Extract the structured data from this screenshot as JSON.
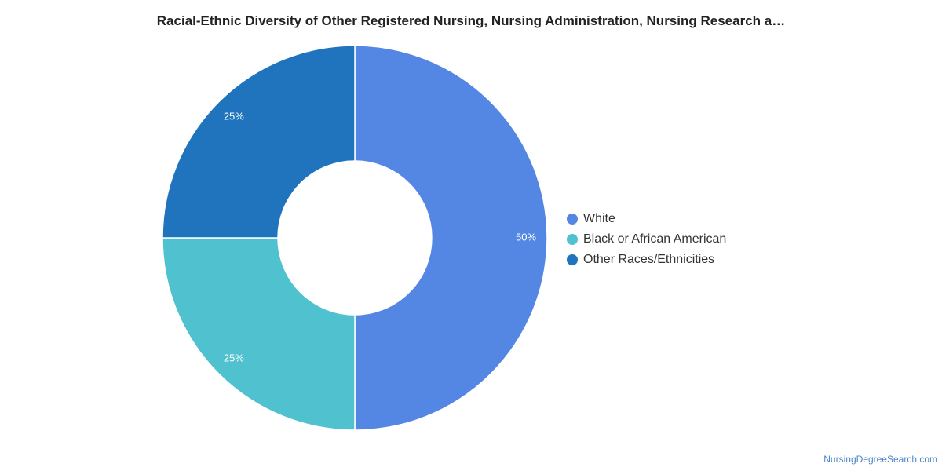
{
  "chart_data": {
    "type": "pie",
    "title": "Racial-Ethnic Diversity of Other Registered Nursing, Nursing Administration, Nursing Research a…",
    "categories": [
      "White",
      "Black or African American",
      "Other Races/Ethnicities"
    ],
    "values": [
      50,
      25,
      25
    ],
    "labels": [
      "50%",
      "25%",
      "25%"
    ],
    "colors": [
      "#5486e3",
      "#50c1cf",
      "#1f74bd"
    ],
    "donut": true,
    "legend_position": "right"
  },
  "source": "NursingDegreeSearch.com"
}
